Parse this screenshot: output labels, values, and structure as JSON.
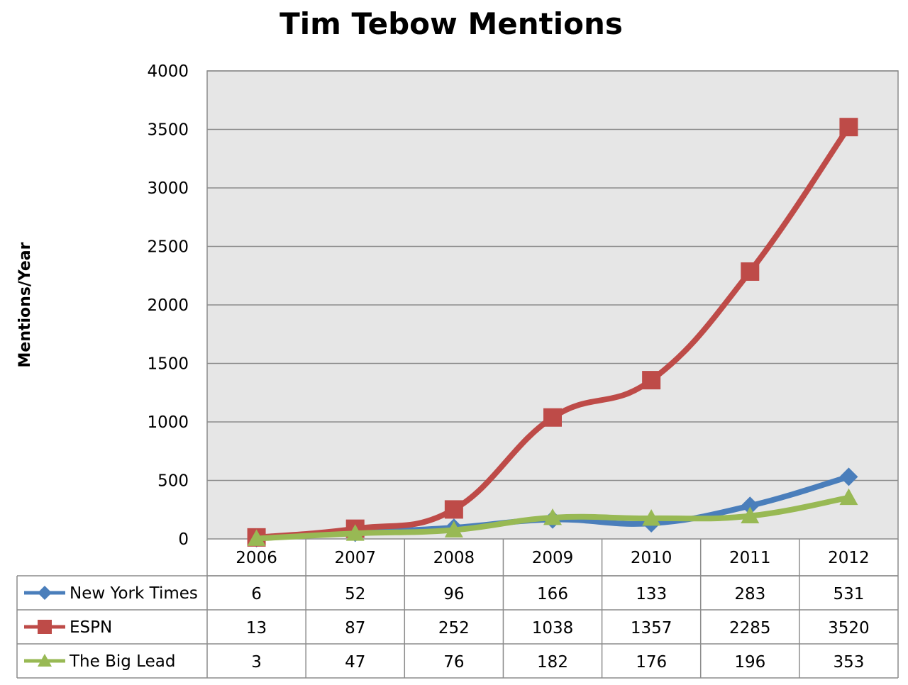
{
  "chart_data": {
    "type": "line",
    "title": "Tim Tebow Mentions",
    "ylabel": "Mentions/Year",
    "xlabel": "",
    "categories": [
      "2006",
      "2007",
      "2008",
      "2009",
      "2010",
      "2011",
      "2012"
    ],
    "ylim": [
      0,
      4000
    ],
    "yticks": [
      0,
      500,
      1000,
      1500,
      2000,
      2500,
      3000,
      3500,
      4000
    ],
    "grid": true,
    "legend_placement": "data-table-left",
    "series": [
      {
        "name": "New York Times",
        "values": [
          6,
          52,
          96,
          166,
          133,
          283,
          531
        ],
        "color": "#4a7ebb",
        "marker": "diamond"
      },
      {
        "name": "ESPN",
        "values": [
          13,
          87,
          252,
          1038,
          1357,
          2285,
          3520
        ],
        "color": "#be4b48",
        "marker": "square"
      },
      {
        "name": "The Big Lead",
        "values": [
          3,
          47,
          76,
          182,
          176,
          196,
          353
        ],
        "color": "#98b954",
        "marker": "triangle"
      }
    ]
  }
}
